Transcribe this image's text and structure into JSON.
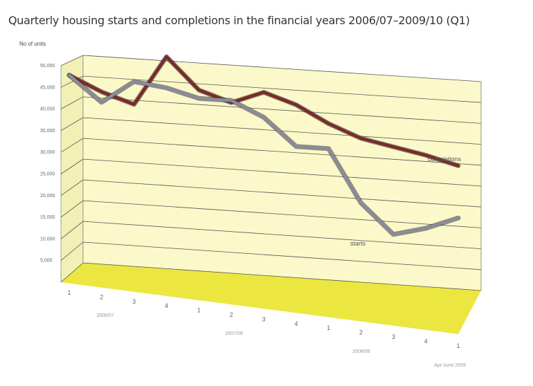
{
  "chart_data": {
    "type": "line",
    "title": "Quarterly housing starts and completions in the financial years 2006/07–2009/10 (Q1)",
    "ylabel": "No of units",
    "ylim": [
      0,
      50000
    ],
    "yticks": [
      "5,000",
      "10,000",
      "15,000",
      "20,000",
      "25,000",
      "30,000",
      "35,000",
      "40,000",
      "45,000",
      "50,000"
    ],
    "categories": [
      "1",
      "2",
      "3",
      "4",
      "1",
      "2",
      "3",
      "4",
      "1",
      "2",
      "3",
      "4",
      "1"
    ],
    "year_labels": [
      "2006/07",
      "2007/08",
      "2008/09",
      "Apr-June 2009"
    ],
    "grid": true,
    "series": [
      {
        "name": "completions",
        "color": "#7a2a2a",
        "values": [
          45000,
          41500,
          39000,
          51000,
          43500,
          41000,
          44000,
          41500,
          37500,
          34500,
          33000,
          31500,
          29500
        ]
      },
      {
        "name": "starts",
        "color": "#8a8a9a",
        "values": [
          45000,
          39000,
          44500,
          43500,
          41500,
          41500,
          38000,
          31500,
          31500,
          19000,
          12000,
          14000,
          17000
        ]
      }
    ]
  }
}
